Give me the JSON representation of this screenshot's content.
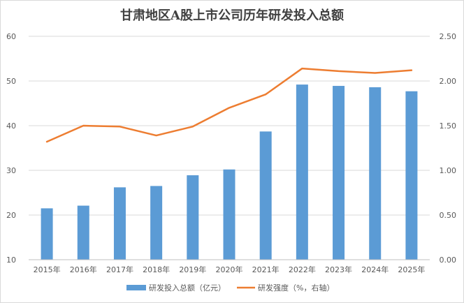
{
  "chart_data": {
    "type": "bar+line",
    "title": "甘肃地区A股上市公司历年研发投入总额",
    "categories": [
      "2015年",
      "2016年",
      "2017年",
      "2018年",
      "2019年",
      "2020年",
      "2021年",
      "2022年",
      "2023年",
      "2024年",
      "2025年"
    ],
    "series": [
      {
        "name": "研发投入总额（亿元）",
        "type": "bar",
        "axis": "left",
        "color": "#5b9bd5",
        "values": [
          21.5,
          22.1,
          26.2,
          26.5,
          28.9,
          30.2,
          38.7,
          49.2,
          48.9,
          48.6,
          47.7
        ]
      },
      {
        "name": "研发强度（%，右轴）",
        "type": "line",
        "axis": "right",
        "color": "#ed7d31",
        "values": [
          1.32,
          1.5,
          1.49,
          1.39,
          1.49,
          1.7,
          1.85,
          2.14,
          2.11,
          2.09,
          2.12
        ]
      }
    ],
    "y_left": {
      "min": 10,
      "max": 60,
      "ticks": [
        "10",
        "20",
        "30",
        "40",
        "50",
        "60"
      ]
    },
    "y_right": {
      "min": 0,
      "max": 2.5,
      "ticks": [
        "0.00",
        "0.50",
        "1.00",
        "1.50",
        "2.00",
        "2.50"
      ]
    },
    "legend_position": "bottom",
    "grid": true
  }
}
